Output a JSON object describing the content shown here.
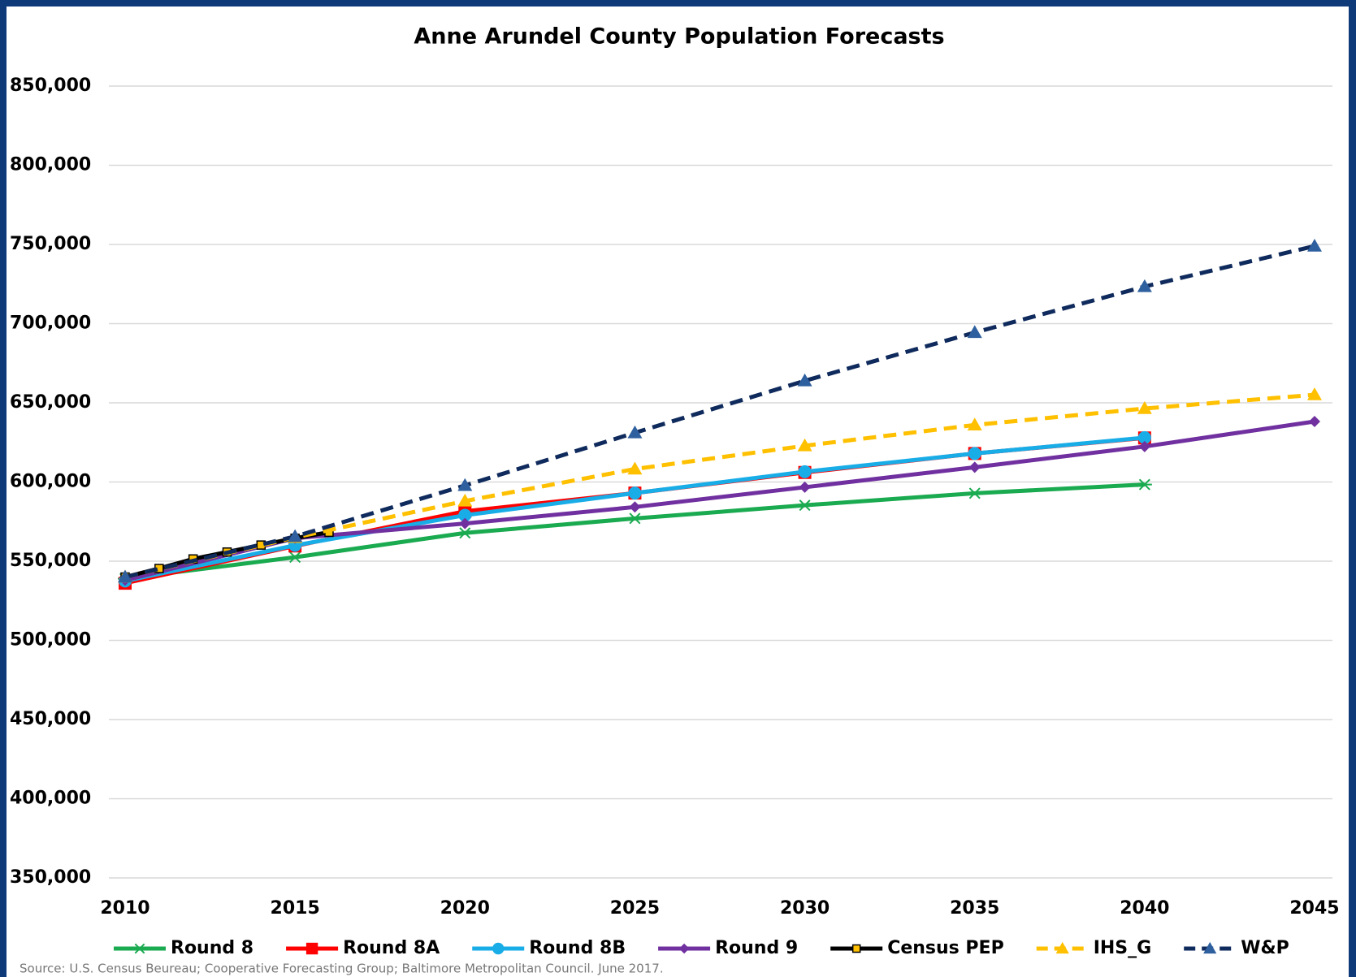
{
  "chart_data": {
    "type": "line",
    "title": "Anne Arundel County Population Forecasts",
    "source": "Source: U.S. Census Beureau; Cooperative Forecasting Group; Baltimore Metropolitan Council. June 2017.",
    "xlim": [
      2010,
      2045
    ],
    "xticks": [
      2010,
      2015,
      2020,
      2025,
      2030,
      2035,
      2040,
      2045
    ],
    "ylim": [
      350000,
      850000
    ],
    "yticks": [
      {
        "value": 350000,
        "label": "350,000"
      },
      {
        "value": 400000,
        "label": "400,000"
      },
      {
        "value": 450000,
        "label": "450,000"
      },
      {
        "value": 500000,
        "label": "500,000"
      },
      {
        "value": 550000,
        "label": "550,000"
      },
      {
        "value": 600000,
        "label": "600,000"
      },
      {
        "value": 650000,
        "label": "650,000"
      },
      {
        "value": 700000,
        "label": "700,000"
      },
      {
        "value": 750000,
        "label": "750,000"
      },
      {
        "value": 800000,
        "label": "800,000"
      },
      {
        "value": 850000,
        "label": "850,000"
      }
    ],
    "grid": true,
    "legend": "bottom",
    "series": [
      {
        "name": "Round 8",
        "color": "#1aaa50",
        "marker": "star",
        "dashed": false,
        "x": [
          2010,
          2015,
          2020,
          2025,
          2030,
          2035,
          2040
        ],
        "values": [
          539000,
          552500,
          567800,
          577000,
          585300,
          592900,
          598400
        ]
      },
      {
        "name": "Round 8A",
        "color": "#ff0000",
        "marker": "square",
        "dashed": false,
        "x": [
          2010,
          2015,
          2020,
          2025,
          2030,
          2035,
          2040
        ],
        "values": [
          536100,
          559600,
          581500,
          593000,
          606000,
          618000,
          627800
        ]
      },
      {
        "name": "Round 8B",
        "color": "#19ade8",
        "marker": "circle",
        "dashed": false,
        "x": [
          2010,
          2015,
          2020,
          2025,
          2030,
          2035,
          2040
        ],
        "values": [
          537500,
          560000,
          579000,
          593000,
          606500,
          618000,
          628000
        ]
      },
      {
        "name": "Round 9",
        "color": "#7030a0",
        "marker": "diamond",
        "dashed": false,
        "x": [
          2010,
          2015,
          2020,
          2025,
          2030,
          2035,
          2040,
          2045
        ],
        "values": [
          538000,
          564500,
          573800,
          584200,
          596700,
          609300,
          622400,
          638200
        ]
      },
      {
        "name": "Census PEP",
        "color": "#000000",
        "marker": "boxed",
        "dashed": false,
        "x": [
          2010,
          2011,
          2012,
          2013,
          2014,
          2015,
          2016
        ],
        "values": [
          540000,
          545400,
          551400,
          555800,
          560200,
          564500,
          568300
        ]
      },
      {
        "name": "IHS_G",
        "color": "#ffc000",
        "marker": "triangle",
        "dashed": true,
        "x": [
          2010,
          2015,
          2020,
          2025,
          2030,
          2035,
          2040,
          2045
        ],
        "values": [
          540000,
          565000,
          588000,
          608200,
          622900,
          636000,
          646400,
          655100
        ]
      },
      {
        "name": "W&P",
        "color": "#0f2a5c",
        "marker": "triangle-blue",
        "dashed": true,
        "x": [
          2010,
          2015,
          2020,
          2025,
          2030,
          2035,
          2040,
          2045
        ],
        "values": [
          540000,
          565600,
          597800,
          631100,
          663900,
          694400,
          723400,
          749000
        ]
      }
    ]
  }
}
